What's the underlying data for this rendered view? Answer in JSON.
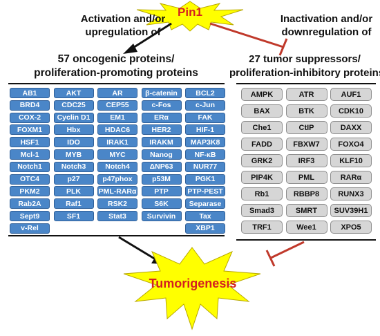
{
  "pin1": {
    "label": "Pin1"
  },
  "activation": {
    "lines": [
      "Activation and/or",
      "upregulation of"
    ]
  },
  "inactivation": {
    "lines": [
      "Inactivation and/or",
      "downregulation of"
    ]
  },
  "oncogenic": {
    "title_lines": [
      "57 oncogenic proteins/",
      "proliferation-promoting proteins"
    ],
    "rows": [
      [
        "AB1",
        "AKT",
        "AR",
        "β-catenin",
        "BCL2"
      ],
      [
        "BRD4",
        "CDC25",
        "CEP55",
        "c-Fos",
        "c-Jun"
      ],
      [
        "COX-2",
        "Cyclin D1",
        "EM1",
        "ERα",
        "FAK"
      ],
      [
        "FOXM1",
        "Hbx",
        "HDAC6",
        "HER2",
        "HIF-1"
      ],
      [
        "HSF1",
        "IDO",
        "IRAK1",
        "IRAKM",
        "MAP3K8"
      ],
      [
        "Mcl-1",
        "MYB",
        "MYC",
        "Nanog",
        "NF-κB"
      ],
      [
        "Notch1",
        "Notch3",
        "Notch4",
        "ΔNP63",
        "NUR77"
      ],
      [
        "OTC4",
        "p27",
        "p47phox",
        "p53M",
        "PGK1"
      ],
      [
        "PKM2",
        "PLK",
        "PML-RARα",
        "PTP",
        "PTP-PEST"
      ],
      [
        "Rab2A",
        "Raf1",
        "RSK2",
        "S6K",
        "Separase"
      ],
      [
        "Sept9",
        "SF1",
        "Stat3",
        "Survivin",
        "Tax"
      ],
      [
        "v-Rel",
        "",
        "",
        "",
        "XBP1"
      ]
    ]
  },
  "suppressors": {
    "title_lines": [
      "27 tumor suppressors/",
      "proliferation-inhibitory proteins"
    ],
    "rows": [
      [
        "AMPK",
        "ATR",
        "AUF1"
      ],
      [
        "BAX",
        "BTK",
        "CDK10"
      ],
      [
        "Che1",
        "CtIP",
        "DAXX"
      ],
      [
        "FADD",
        "FBXW7",
        "FOXO4"
      ],
      [
        "GRK2",
        "IRF3",
        "KLF10"
      ],
      [
        "PIP4K",
        "PML",
        "RARα"
      ],
      [
        "Rb1",
        "RBBP8",
        "RUNX3"
      ],
      [
        "Smad3",
        "SMRT",
        "SUV39H1"
      ],
      [
        "TRF1",
        "Wee1",
        "XPO5"
      ]
    ]
  },
  "tumorigenesis": {
    "label": "Tumorigenesis"
  },
  "colors": {
    "star_fill": "#ffff00",
    "star_stroke": "#b8a800",
    "label_red": "#d42020",
    "oncogenic_cell": "#4a86c8",
    "suppressor_cell": "#d6d6d6",
    "inhibit_arrow": "#c0392b",
    "activate_arrow": "#111111"
  }
}
